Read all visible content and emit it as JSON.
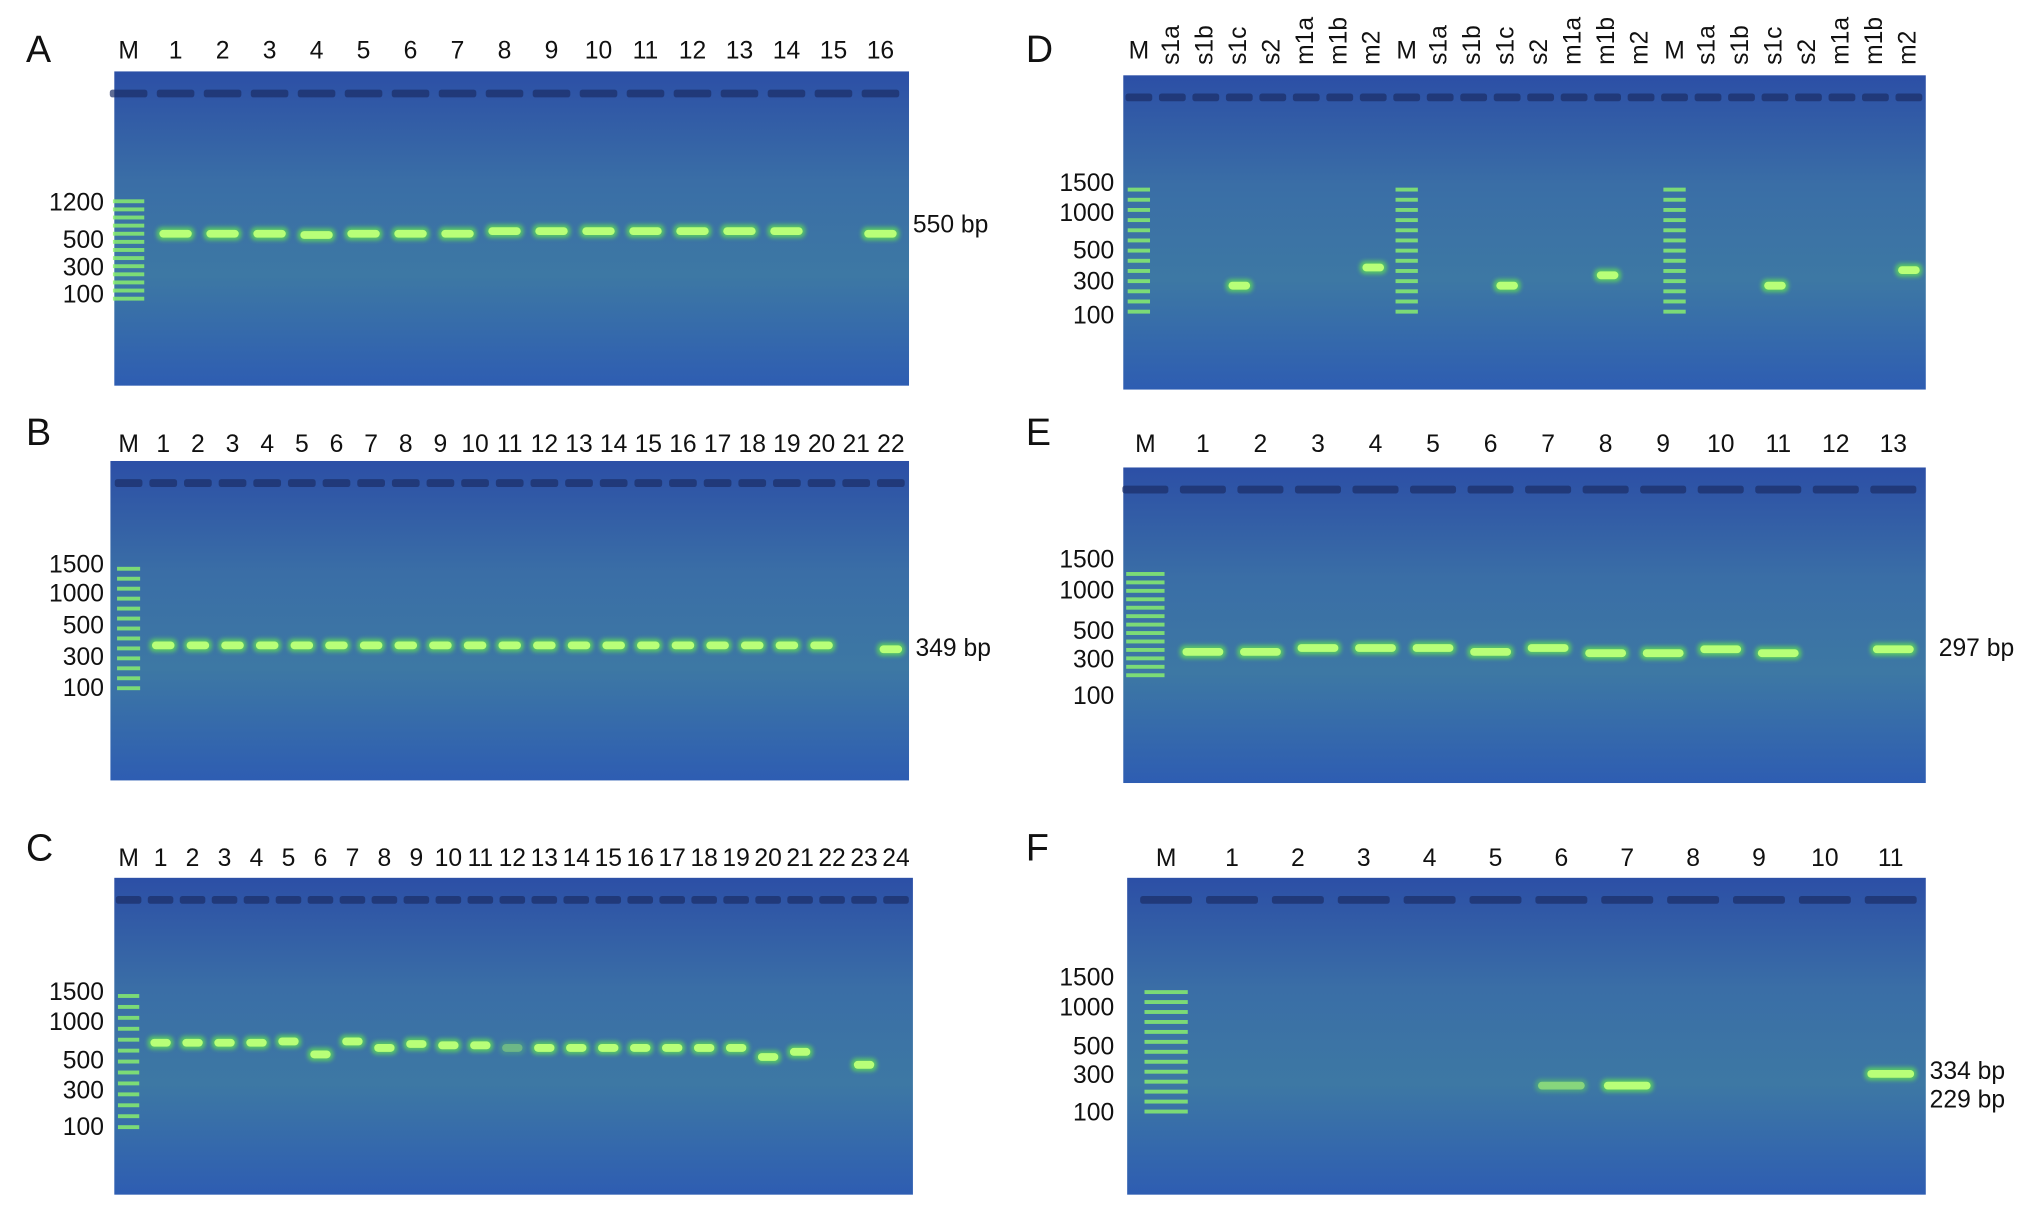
{
  "panels": [
    {
      "letter": "A",
      "lanes": [
        "M",
        "1",
        "2",
        "3",
        "4",
        "5",
        "6",
        "7",
        "8",
        "9",
        "10",
        "11",
        "12",
        "13",
        "14",
        "15",
        "16"
      ],
      "markers": [
        "1200",
        "500",
        "300",
        "100"
      ],
      "band_labels": [
        "550 bp"
      ]
    },
    {
      "letter": "B",
      "lanes": [
        "M",
        "1",
        "2",
        "3",
        "4",
        "5",
        "6",
        "7",
        "8",
        "9",
        "10",
        "11",
        "12",
        "13",
        "14",
        "15",
        "16",
        "17",
        "18",
        "19",
        "20",
        "21",
        "22"
      ],
      "markers": [
        "1500",
        "1000",
        "500",
        "300",
        "100"
      ],
      "band_labels": [
        "349 bp"
      ]
    },
    {
      "letter": "C",
      "lanes": [
        "M",
        "1",
        "2",
        "3",
        "4",
        "5",
        "6",
        "7",
        "8",
        "9",
        "10",
        "11",
        "12",
        "13",
        "14",
        "15",
        "16",
        "17",
        "18",
        "19",
        "20",
        "21",
        "22",
        "23",
        "24"
      ],
      "markers": [
        "1500",
        "1000",
        "500",
        "300",
        "100"
      ],
      "band_labels": []
    },
    {
      "letter": "D",
      "lanes": [
        "M",
        "s1a",
        "s1b",
        "s1c",
        "s2",
        "m1a",
        "m1b",
        "m2",
        "M",
        "s1a",
        "s1b",
        "s1c",
        "s2",
        "m1a",
        "m1b",
        "m2",
        "M",
        "s1a",
        "s1b",
        "s1c",
        "s2",
        "m1a",
        "m1b",
        "m2"
      ],
      "markers": [
        "1500",
        "1000",
        "500",
        "300",
        "100"
      ],
      "band_labels": []
    },
    {
      "letter": "E",
      "lanes": [
        "M",
        "1",
        "2",
        "3",
        "4",
        "5",
        "6",
        "7",
        "8",
        "9",
        "10",
        "11",
        "12",
        "13"
      ],
      "markers": [
        "1500",
        "1000",
        "500",
        "300",
        "100"
      ],
      "band_labels": [
        "297 bp"
      ]
    },
    {
      "letter": "F",
      "lanes": [
        "M",
        "1",
        "2",
        "3",
        "4",
        "5",
        "6",
        "7",
        "8",
        "9",
        "10",
        "11"
      ],
      "markers": [
        "1500",
        "1000",
        "500",
        "300",
        "100"
      ],
      "band_labels": [
        "334 bp",
        "229 bp"
      ]
    }
  ]
}
